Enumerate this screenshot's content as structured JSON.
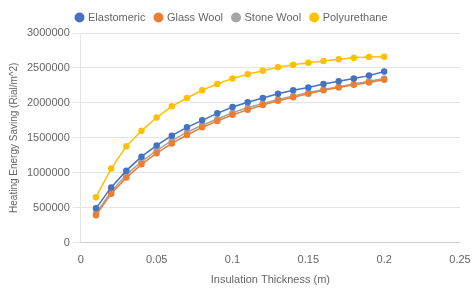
{
  "chart_data": {
    "type": "line",
    "xlabel": "Insulation Thickness (m)",
    "ylabel": "Heating Energy Saving (Rial/m^2)",
    "x": [
      0.01,
      0.02,
      0.03,
      0.04,
      0.05,
      0.06,
      0.07,
      0.08,
      0.09,
      0.1,
      0.11,
      0.12,
      0.13,
      0.14,
      0.15,
      0.16,
      0.17,
      0.18,
      0.19,
      0.2
    ],
    "series": [
      {
        "name": "Elastomeric",
        "color": "#4472C4",
        "marker": "o",
        "values": [
          490000,
          790000,
          1030000,
          1230000,
          1390000,
          1530000,
          1650000,
          1750000,
          1850000,
          1940000,
          2010000,
          2070000,
          2130000,
          2180000,
          2220000,
          2270000,
          2310000,
          2350000,
          2390000,
          2450000
        ]
      },
      {
        "name": "Glass Wool",
        "color": "#ED7D31",
        "marker": "o",
        "values": [
          390000,
          700000,
          930000,
          1120000,
          1280000,
          1420000,
          1540000,
          1650000,
          1740000,
          1830000,
          1900000,
          1970000,
          2030000,
          2080000,
          2130000,
          2180000,
          2220000,
          2260000,
          2290000,
          2330000
        ]
      },
      {
        "name": "Stone Wool",
        "color": "#A5A5A5",
        "marker": "o",
        "values": [
          420000,
          730000,
          970000,
          1160000,
          1320000,
          1460000,
          1580000,
          1680000,
          1770000,
          1860000,
          1930000,
          1990000,
          2050000,
          2100000,
          2150000,
          2190000,
          2230000,
          2270000,
          2310000,
          2350000
        ]
      },
      {
        "name": "Polyurethane",
        "color": "#FFC000",
        "marker": "o",
        "values": [
          650000,
          1060000,
          1380000,
          1600000,
          1790000,
          1950000,
          2070000,
          2180000,
          2270000,
          2350000,
          2410000,
          2460000,
          2510000,
          2545000,
          2575000,
          2600000,
          2625000,
          2645000,
          2655000,
          2660000
        ]
      }
    ],
    "xlim": [
      0,
      0.25
    ],
    "xticks": [
      0,
      0.05,
      0.1,
      0.15,
      0.2,
      0.25
    ],
    "ylim": [
      0,
      3000000
    ],
    "yticks": [
      0,
      500000,
      1000000,
      1500000,
      2000000,
      2500000,
      3000000
    ],
    "grid": "y",
    "legend": "top"
  }
}
